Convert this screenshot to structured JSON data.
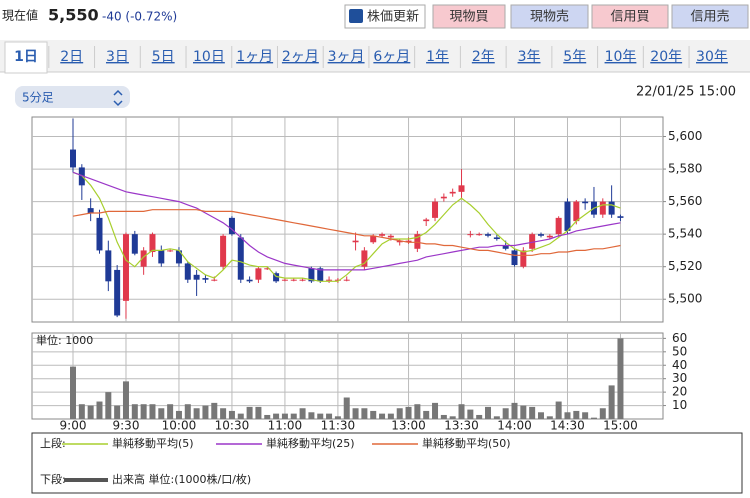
{
  "header": {
    "label": "現在値",
    "price": "5,550",
    "change": "-40 (-0.72%)"
  },
  "buttons": [
    "株価更新",
    "現物買",
    "現物売",
    "信用買",
    "信用売"
  ],
  "tabs": [
    "1日",
    "2日",
    "3日",
    "5日",
    "10日",
    "1ヶ月",
    "2ヶ月",
    "3ヶ月",
    "6ヶ月",
    "1年",
    "2年",
    "3年",
    "5年",
    "10年",
    "20年",
    "30年"
  ],
  "interval_select": "5分足",
  "timestamp": "22/01/25 15:00",
  "legend": {
    "upper": "上段:",
    "lower": "下段:"
  },
  "chart_data": [
    {
      "type": "candlestick",
      "up_color": "#e0384c",
      "down_color": "#1f3a96",
      "open": [
        5592,
        5581,
        5556,
        5550,
        5530,
        5518,
        5499,
        5540,
        5520,
        5529,
        5530,
        5530,
        5530,
        5522,
        5515,
        5513,
        5512,
        5520,
        5550,
        5538,
        5512,
        5512,
        5519,
        5516,
        5512,
        5512,
        5512,
        5519,
        5519,
        5512,
        5512,
        5512,
        5535,
        5520,
        5535,
        5539,
        5538,
        5535,
        5535,
        5531,
        5548,
        5550,
        5562,
        5565,
        5566,
        5540,
        5540,
        5540,
        5538,
        5533,
        5530,
        5520,
        5531,
        5540,
        5538,
        5540,
        5560,
        5548,
        5560,
        5560,
        5552,
        5560,
        5551
      ],
      "high": [
        5611,
        5583,
        5562,
        5555,
        5536,
        5521,
        5541,
        5542,
        5532,
        5541,
        5533,
        5531,
        5532,
        5523,
        5518,
        5515,
        5514,
        5540,
        5551,
        5540,
        5514,
        5520,
        5520,
        5517,
        5513,
        5513,
        5513,
        5520,
        5520,
        5514,
        5513,
        5514,
        5541,
        5532,
        5540,
        5541,
        5540,
        5537,
        5538,
        5542,
        5550,
        5562,
        5565,
        5568,
        5580,
        5542,
        5541,
        5541,
        5540,
        5536,
        5531,
        5532,
        5541,
        5541,
        5540,
        5551,
        5562,
        5561,
        5562,
        5569,
        5562,
        5570,
        5552
      ],
      "low": [
        5578,
        5561,
        5548,
        5528,
        5505,
        5489,
        5488,
        5527,
        5515,
        5526,
        5520,
        5529,
        5520,
        5510,
        5502,
        5510,
        5511,
        5518,
        5539,
        5510,
        5510,
        5510,
        5518,
        5510,
        5511,
        5511,
        5511,
        5510,
        5510,
        5510,
        5510,
        5511,
        5530,
        5518,
        5534,
        5538,
        5536,
        5533,
        5534,
        5529,
        5545,
        5548,
        5560,
        5563,
        5562,
        5538,
        5539,
        5538,
        5536,
        5530,
        5520,
        5519,
        5529,
        5538,
        5537,
        5538,
        5540,
        5546,
        5555,
        5550,
        5550,
        5550,
        5548
      ],
      "close": [
        5581,
        5570,
        5553,
        5530,
        5511,
        5490,
        5540,
        5528,
        5530,
        5540,
        5522,
        5530,
        5522,
        5512,
        5512,
        5512,
        5512,
        5539,
        5540,
        5512,
        5511,
        5519,
        5519,
        5511,
        5512,
        5512,
        5512,
        5511,
        5511,
        5512,
        5512,
        5512,
        5536,
        5530,
        5539,
        5540,
        5539,
        5536,
        5536,
        5540,
        5549,
        5560,
        5563,
        5566,
        5570,
        5540,
        5540,
        5539,
        5537,
        5531,
        5521,
        5530,
        5540,
        5539,
        5539,
        5550,
        5542,
        5560,
        5559,
        5552,
        5560,
        5552,
        5550
      ],
      "series": [
        {
          "name": "単純移動平均(5)",
          "color": "#a8cf2e",
          "values": [
            5578,
            5576,
            5570,
            5562,
            5550,
            5535,
            5524,
            5520,
            5526,
            5530,
            5530,
            5531,
            5530,
            5523,
            5519,
            5515,
            5513,
            5518,
            5524,
            5523,
            5521,
            5520,
            5520,
            5514,
            5513,
            5513,
            5513,
            5512,
            5511,
            5511,
            5511,
            5515,
            5520,
            5522,
            5528,
            5534,
            5537,
            5537,
            5537,
            5538,
            5541,
            5546,
            5552,
            5558,
            5562,
            5558,
            5553,
            5546,
            5540,
            5535,
            5531,
            5529,
            5530,
            5532,
            5534,
            5538,
            5542,
            5548,
            5552,
            5556,
            5558,
            5558,
            5556
          ]
        },
        {
          "name": "単純移動平均(25)",
          "color": "#9b37c8",
          "values": [
            5578,
            5576,
            5574,
            5572,
            5570,
            5568,
            5566,
            5565,
            5564,
            5563,
            5562,
            5561,
            5560,
            5558,
            5556,
            5553,
            5550,
            5547,
            5543,
            5538,
            5533,
            5529,
            5526,
            5524,
            5522,
            5521,
            5520,
            5519,
            5518,
            5518,
            5518,
            5518,
            5518,
            5518,
            5519,
            5520,
            5521,
            5522,
            5523,
            5524,
            5526,
            5527,
            5528,
            5529,
            5530,
            5531,
            5532,
            5532,
            5533,
            5533,
            5533,
            5534,
            5535,
            5536,
            5537,
            5539,
            5540,
            5542,
            5543,
            5544,
            5545,
            5546,
            5547
          ]
        },
        {
          "name": "単純移動平均(50)",
          "color": "#e0683a",
          "values": [
            5551,
            5552,
            5553,
            5553,
            5554,
            5554,
            5554,
            5554,
            5554,
            5555,
            5555,
            5555,
            5555,
            5555,
            5555,
            5554,
            5554,
            5554,
            5554,
            5553,
            5552,
            5551,
            5550,
            5549,
            5548,
            5547,
            5546,
            5545,
            5544,
            5543,
            5542,
            5541,
            5540,
            5539,
            5539,
            5538,
            5537,
            5536,
            5535,
            5535,
            5534,
            5534,
            5533,
            5533,
            5532,
            5531,
            5530,
            5530,
            5529,
            5528,
            5527,
            5527,
            5527,
            5528,
            5528,
            5529,
            5529,
            5530,
            5530,
            5531,
            5531,
            5532,
            5533
          ]
        }
      ],
      "ylim": [
        5486,
        5612
      ],
      "yticks": [
        {
          "value": 5500,
          "label": "5,500"
        },
        {
          "value": 5520,
          "label": "5,520"
        },
        {
          "value": 5540,
          "label": "5,540"
        },
        {
          "value": 5560,
          "label": "5,560"
        },
        {
          "value": 5580,
          "label": "5,580"
        },
        {
          "value": 5600,
          "label": "5,600"
        }
      ],
      "grid": true
    },
    {
      "type": "bar",
      "name": "出来高 単位:(1000株/口/枚)",
      "unit_label": "単位: 1000",
      "color": "#777777",
      "categories": [
        "9:00",
        null,
        null,
        null,
        null,
        null,
        "9:30",
        null,
        null,
        null,
        null,
        null,
        "10:00",
        null,
        null,
        null,
        null,
        null,
        "10:30",
        null,
        null,
        null,
        null,
        null,
        "11:00",
        null,
        null,
        null,
        null,
        null,
        "11:30",
        null,
        null,
        null,
        null,
        null,
        null,
        null,
        "13:00",
        null,
        null,
        null,
        null,
        null,
        "13:30",
        null,
        null,
        null,
        null,
        null,
        "14:00",
        null,
        null,
        null,
        null,
        null,
        "14:30",
        null,
        null,
        null,
        null,
        null,
        "15:00"
      ],
      "values": [
        39,
        11,
        10,
        13,
        20,
        10,
        28,
        11,
        11,
        11,
        8,
        11,
        6,
        11,
        8,
        10,
        12,
        8,
        6,
        4,
        9,
        9,
        3,
        4,
        4,
        4,
        8,
        5,
        4,
        4,
        2,
        16,
        8,
        8,
        6,
        4,
        4,
        8,
        9,
        11,
        6,
        12,
        3,
        2,
        11,
        7,
        3,
        9,
        2,
        8,
        12,
        10,
        9,
        5,
        2,
        13,
        5,
        6,
        5,
        1,
        8,
        25,
        60
      ],
      "ylim": [
        0,
        64
      ],
      "yticks": [
        10,
        20,
        30,
        40,
        50,
        60
      ],
      "grid": true
    }
  ]
}
